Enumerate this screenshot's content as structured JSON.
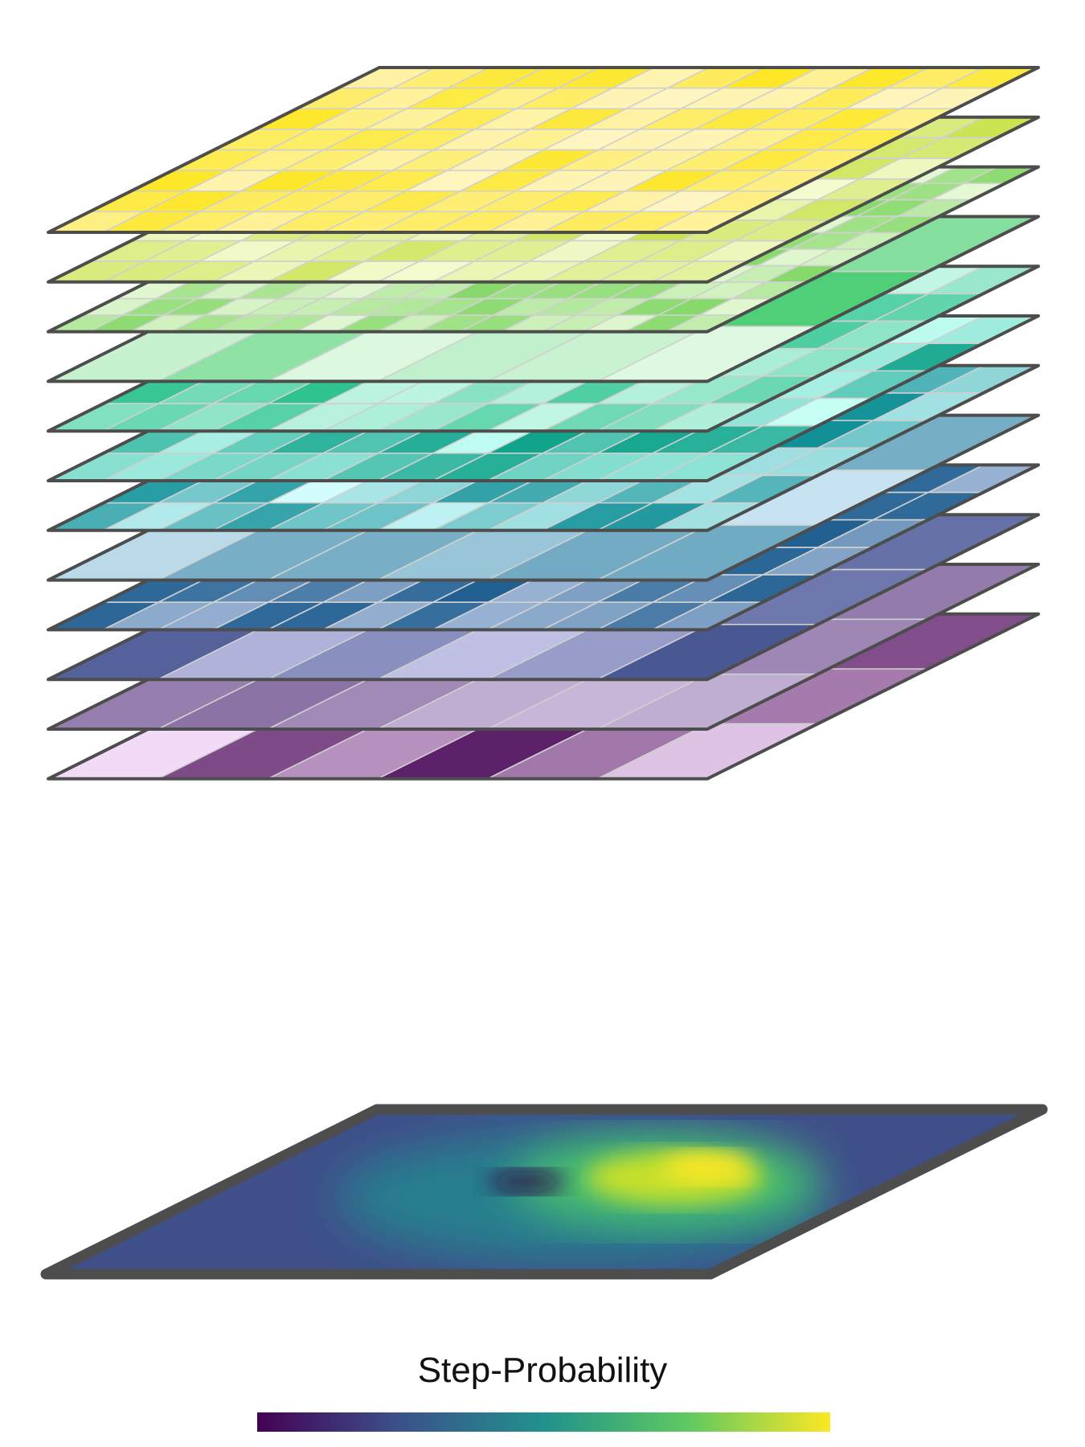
{
  "legend": {
    "title": "Step-Probability",
    "colormap": "viridis",
    "colors": [
      "#440154",
      "#3b528b",
      "#21918c",
      "#5ec962",
      "#fde725"
    ]
  },
  "stack": {
    "layer_count": 12,
    "layers": [
      {
        "grid_cols": 12,
        "grid_rows": 8,
        "palette": [
          "#fff5c2",
          "#fde725"
        ]
      },
      {
        "grid_cols": 12,
        "grid_rows": 8,
        "palette": [
          "#f4fbd0",
          "#c8e24a"
        ]
      },
      {
        "grid_cols": 16,
        "grid_rows": 10,
        "palette": [
          "#e4f8d4",
          "#86d96a"
        ]
      },
      {
        "grid_cols": 6,
        "grid_rows": 3,
        "palette": [
          "#e8fbe8",
          "#4ccf76"
        ]
      },
      {
        "grid_cols": 12,
        "grid_rows": 6,
        "palette": [
          "#c8f8e8",
          "#25c08a"
        ]
      },
      {
        "grid_cols": 12,
        "grid_rows": 6,
        "palette": [
          "#c6fff4",
          "#0aa089"
        ]
      },
      {
        "grid_cols": 12,
        "grid_rows": 6,
        "palette": [
          "#d8ffff",
          "#108f96"
        ]
      },
      {
        "grid_cols": 6,
        "grid_rows": 3,
        "palette": [
          "#e2f4ff",
          "#3f8aa8"
        ]
      },
      {
        "grid_cols": 12,
        "grid_rows": 6,
        "palette": [
          "#9bb4d4",
          "#1c5c8e"
        ]
      },
      {
        "grid_cols": 6,
        "grid_rows": 3,
        "palette": [
          "#c8c8ea",
          "#3e4d8c"
        ]
      },
      {
        "grid_cols": 6,
        "grid_rows": 3,
        "palette": [
          "#e8daf4",
          "#4a2a6e"
        ]
      },
      {
        "grid_cols": 6,
        "grid_rows": 3,
        "palette": [
          "#f8e2fc",
          "#4a0b57"
        ]
      }
    ]
  },
  "heatmap": {
    "description_colormap": "viridis",
    "hotspot_color": "#fde725",
    "cold_spot_color": "#2c0b4a",
    "background_color": "#3f4f8a"
  }
}
